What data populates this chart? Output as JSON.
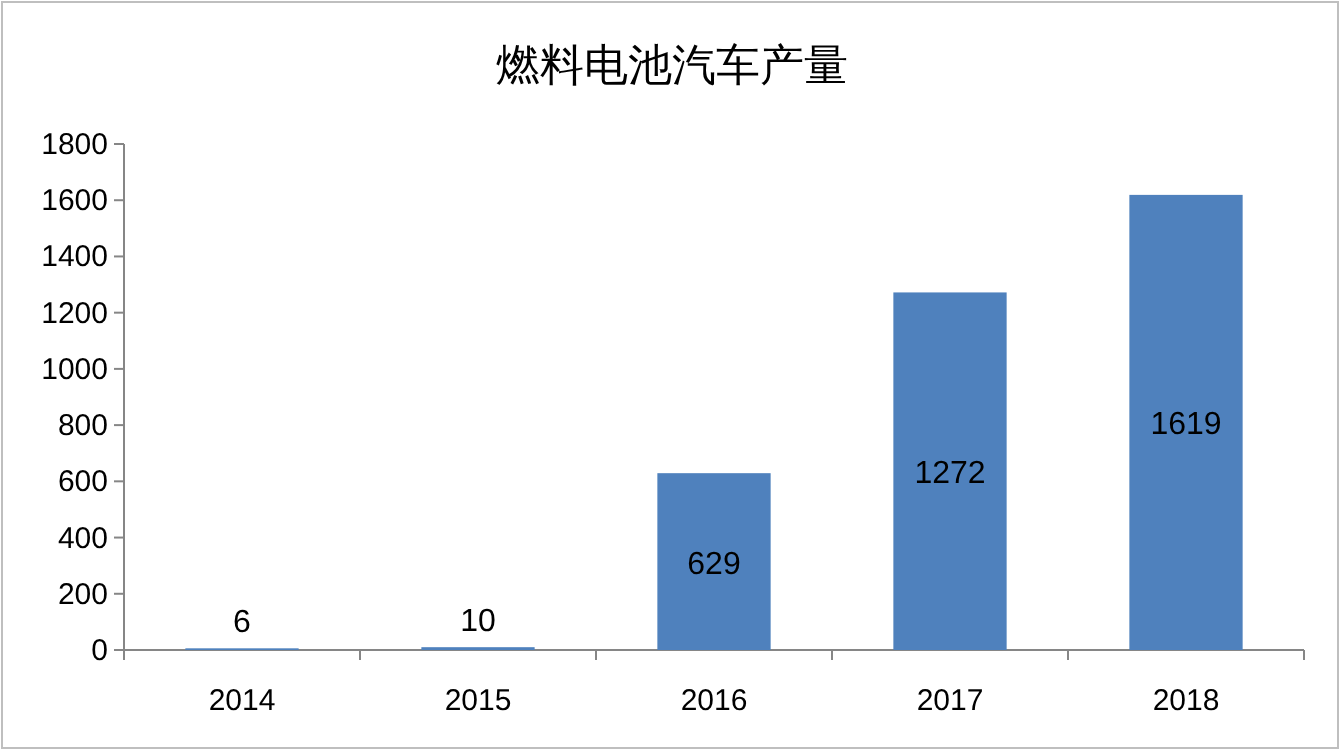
{
  "chart_data": {
    "type": "bar",
    "title": "燃料电池汽车产量",
    "categories": [
      "2014",
      "2015",
      "2016",
      "2017",
      "2018"
    ],
    "values": [
      6,
      10,
      629,
      1272,
      1619
    ],
    "color": "#4f81bd",
    "ylim": [
      0,
      1800
    ],
    "yticks": [
      0,
      200,
      400,
      600,
      800,
      1000,
      1200,
      1400,
      1600,
      1800
    ],
    "data_labels": true
  }
}
